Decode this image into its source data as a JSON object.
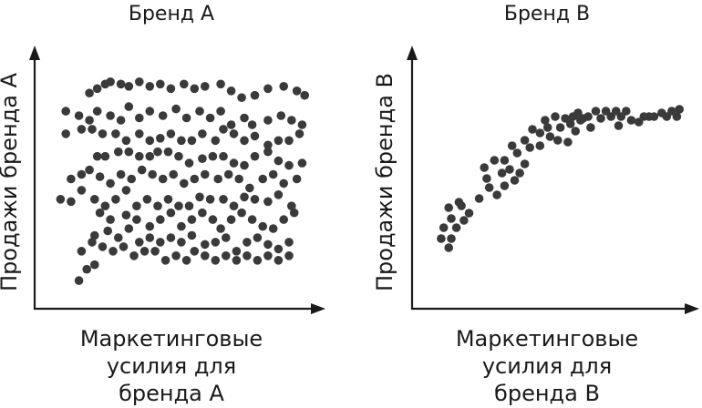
{
  "colors": {
    "axis": "#1a1a1a",
    "point": "#3a3a3a",
    "background": "#ffffff"
  },
  "chart_data": [
    {
      "type": "scatter",
      "title": "Бренд А",
      "xlabel_lines": [
        "Маркетинговые",
        "усилия для",
        "бренда А"
      ],
      "ylabel": "Продажи бренда А",
      "xlim": [
        0,
        100
      ],
      "ylim": [
        0,
        100
      ],
      "ticks": "none",
      "grid": false,
      "series": [
        {
          "points": [
            [
              16,
              87
            ],
            [
              19,
              89
            ],
            [
              22,
              91
            ],
            [
              24,
              92
            ],
            [
              28,
              91
            ],
            [
              31,
              90
            ],
            [
              35,
              92
            ],
            [
              39,
              90
            ],
            [
              43,
              91
            ],
            [
              47,
              89
            ],
            [
              52,
              91
            ],
            [
              56,
              89
            ],
            [
              60,
              90
            ],
            [
              66,
              91
            ],
            [
              70,
              88
            ],
            [
              74,
              85
            ],
            [
              79,
              86
            ],
            [
              84,
              89
            ],
            [
              90,
              90
            ],
            [
              95,
              88
            ],
            [
              98,
              86
            ],
            [
              7,
              79
            ],
            [
              12,
              77
            ],
            [
              16,
              75
            ],
            [
              19,
              79
            ],
            [
              24,
              77
            ],
            [
              28,
              75
            ],
            [
              31,
              81
            ],
            [
              35,
              76
            ],
            [
              39,
              79
            ],
            [
              44,
              77
            ],
            [
              49,
              80
            ],
            [
              53,
              76
            ],
            [
              58,
              79
            ],
            [
              62,
              76
            ],
            [
              66,
              79
            ],
            [
              70,
              73
            ],
            [
              75,
              76
            ],
            [
              78,
              73
            ],
            [
              84,
              75
            ],
            [
              89,
              77
            ],
            [
              93,
              75
            ],
            [
              97,
              73
            ],
            [
              7,
              69
            ],
            [
              13,
              71
            ],
            [
              17,
              71
            ],
            [
              21,
              69
            ],
            [
              26,
              69
            ],
            [
              30,
              66
            ],
            [
              35,
              69
            ],
            [
              39,
              66
            ],
            [
              43,
              67
            ],
            [
              47,
              69
            ],
            [
              51,
              66
            ],
            [
              55,
              66
            ],
            [
              59,
              69
            ],
            [
              64,
              66
            ],
            [
              67,
              71
            ],
            [
              71,
              69
            ],
            [
              75,
              66
            ],
            [
              79,
              68
            ],
            [
              84,
              64
            ],
            [
              88,
              66
            ],
            [
              92,
              66
            ],
            [
              96,
              69
            ],
            [
              19,
              59
            ],
            [
              22,
              59
            ],
            [
              27,
              61
            ],
            [
              31,
              61
            ],
            [
              35,
              59
            ],
            [
              39,
              59
            ],
            [
              42,
              61
            ],
            [
              46,
              61
            ],
            [
              50,
              59
            ],
            [
              54,
              56
            ],
            [
              59,
              58
            ],
            [
              63,
              59
            ],
            [
              67,
              59
            ],
            [
              71,
              56
            ],
            [
              75,
              55
            ],
            [
              79,
              59
            ],
            [
              84,
              61
            ],
            [
              88,
              57
            ],
            [
              92,
              55
            ],
            [
              97,
              56
            ],
            [
              9,
              49
            ],
            [
              13,
              51
            ],
            [
              16,
              53
            ],
            [
              20,
              50
            ],
            [
              24,
              47
            ],
            [
              28,
              51
            ],
            [
              32,
              49
            ],
            [
              36,
              53
            ],
            [
              40,
              51
            ],
            [
              44,
              49
            ],
            [
              48,
              51
            ],
            [
              52,
              47
            ],
            [
              56,
              49
            ],
            [
              60,
              51
            ],
            [
              65,
              49
            ],
            [
              69,
              51
            ],
            [
              73,
              49
            ],
            [
              77,
              45
            ],
            [
              82,
              49
            ],
            [
              86,
              51
            ],
            [
              90,
              47
            ],
            [
              95,
              49
            ],
            [
              5,
              40
            ],
            [
              9,
              39
            ],
            [
              13,
              44
            ],
            [
              18,
              40
            ],
            [
              22,
              37
            ],
            [
              26,
              40
            ],
            [
              30,
              44
            ],
            [
              34,
              37
            ],
            [
              38,
              40
            ],
            [
              42,
              37
            ],
            [
              46,
              40
            ],
            [
              50,
              37
            ],
            [
              54,
              37
            ],
            [
              58,
              41
            ],
            [
              62,
              40
            ],
            [
              67,
              40
            ],
            [
              71,
              37
            ],
            [
              75,
              41
            ],
            [
              79,
              40
            ],
            [
              84,
              39
            ],
            [
              88,
              42
            ],
            [
              93,
              37
            ],
            [
              20,
              34
            ],
            [
              24,
              31
            ],
            [
              30,
              33
            ],
            [
              34,
              31
            ],
            [
              39,
              28
            ],
            [
              43,
              31
            ],
            [
              47,
              34
            ],
            [
              51,
              28
            ],
            [
              55,
              31
            ],
            [
              59,
              34
            ],
            [
              63,
              31
            ],
            [
              66,
              27
            ],
            [
              70,
              31
            ],
            [
              74,
              34
            ],
            [
              78,
              31
            ],
            [
              82,
              28
            ],
            [
              86,
              27
            ],
            [
              90,
              31
            ],
            [
              94,
              34
            ],
            [
              18,
              24
            ],
            [
              23,
              26
            ],
            [
              27,
              23
            ],
            [
              31,
              27
            ],
            [
              35,
              21
            ],
            [
              39,
              23
            ],
            [
              43,
              21
            ],
            [
              47,
              23
            ],
            [
              51,
              21
            ],
            [
              55,
              24
            ],
            [
              60,
              20
            ],
            [
              64,
              21
            ],
            [
              68,
              23
            ],
            [
              72,
              17
            ],
            [
              76,
              21
            ],
            [
              80,
              23
            ],
            [
              84,
              20
            ],
            [
              88,
              18
            ],
            [
              92,
              21
            ],
            [
              13,
              17
            ],
            [
              17,
              21
            ],
            [
              21,
              19
            ],
            [
              25,
              17
            ],
            [
              29,
              19
            ],
            [
              33,
              15
            ],
            [
              37,
              17
            ],
            [
              41,
              17
            ],
            [
              45,
              13
            ],
            [
              49,
              15
            ],
            [
              53,
              13
            ],
            [
              56,
              17
            ],
            [
              60,
              15
            ],
            [
              64,
              13
            ],
            [
              68,
              15
            ],
            [
              72,
              13
            ],
            [
              76,
              15
            ],
            [
              80,
              13
            ],
            [
              84,
              15
            ],
            [
              88,
              13
            ],
            [
              92,
              15
            ],
            [
              15,
              9
            ],
            [
              18,
              11
            ],
            [
              12,
              4
            ]
          ]
        }
      ]
    },
    {
      "type": "scatter",
      "title": "Бренд В",
      "xlabel_lines": [
        "Маркетинговые",
        "усилия для",
        "бренда В"
      ],
      "ylabel": "Продажи бренда В",
      "xlim": [
        0,
        100
      ],
      "ylim": [
        0,
        100
      ],
      "ticks": "none",
      "grid": false,
      "series": [
        {
          "points": [
            [
              5,
              19
            ],
            [
              8,
              14
            ],
            [
              6,
              25
            ],
            [
              9,
              19
            ],
            [
              11,
              25
            ],
            [
              14,
              29
            ],
            [
              9,
              30
            ],
            [
              13,
              37
            ],
            [
              16,
              33
            ],
            [
              20,
              41
            ],
            [
              24,
              47
            ],
            [
              27,
              43
            ],
            [
              30,
              48
            ],
            [
              23,
              52
            ],
            [
              29,
              55
            ],
            [
              32,
              57
            ],
            [
              34,
              51
            ],
            [
              36,
              55
            ],
            [
              38,
              60
            ],
            [
              8,
              36
            ],
            [
              12,
              39
            ],
            [
              22,
              58
            ],
            [
              26,
              62
            ],
            [
              30,
              62
            ],
            [
              35,
              66
            ],
            [
              33,
              70
            ],
            [
              38,
              73
            ],
            [
              40,
              69
            ],
            [
              44,
              70
            ],
            [
              48,
              75
            ],
            [
              51,
              73
            ],
            [
              44,
              77
            ],
            [
              47,
              80
            ],
            [
              52,
              80
            ],
            [
              56,
              82
            ],
            [
              58,
              78
            ],
            [
              41,
              79
            ],
            [
              46,
              84
            ],
            [
              50,
              86
            ],
            [
              54,
              85
            ],
            [
              57,
              86
            ],
            [
              59,
              88
            ],
            [
              61,
              85
            ],
            [
              63,
              86
            ],
            [
              66,
              89
            ],
            [
              68,
              85
            ],
            [
              70,
              89
            ],
            [
              72,
              86
            ],
            [
              74,
              89
            ],
            [
              76,
              86
            ],
            [
              78,
              89
            ],
            [
              80,
              84
            ],
            [
              83,
              83
            ],
            [
              85,
              86
            ],
            [
              87,
              86
            ],
            [
              89,
              86
            ],
            [
              92,
              88
            ],
            [
              94,
              86
            ],
            [
              96,
              89
            ],
            [
              98,
              86
            ],
            [
              99,
              90
            ],
            [
              64,
              80
            ],
            [
              60,
              84
            ],
            [
              75,
              81
            ],
            [
              55,
              72
            ]
          ]
        }
      ]
    }
  ]
}
